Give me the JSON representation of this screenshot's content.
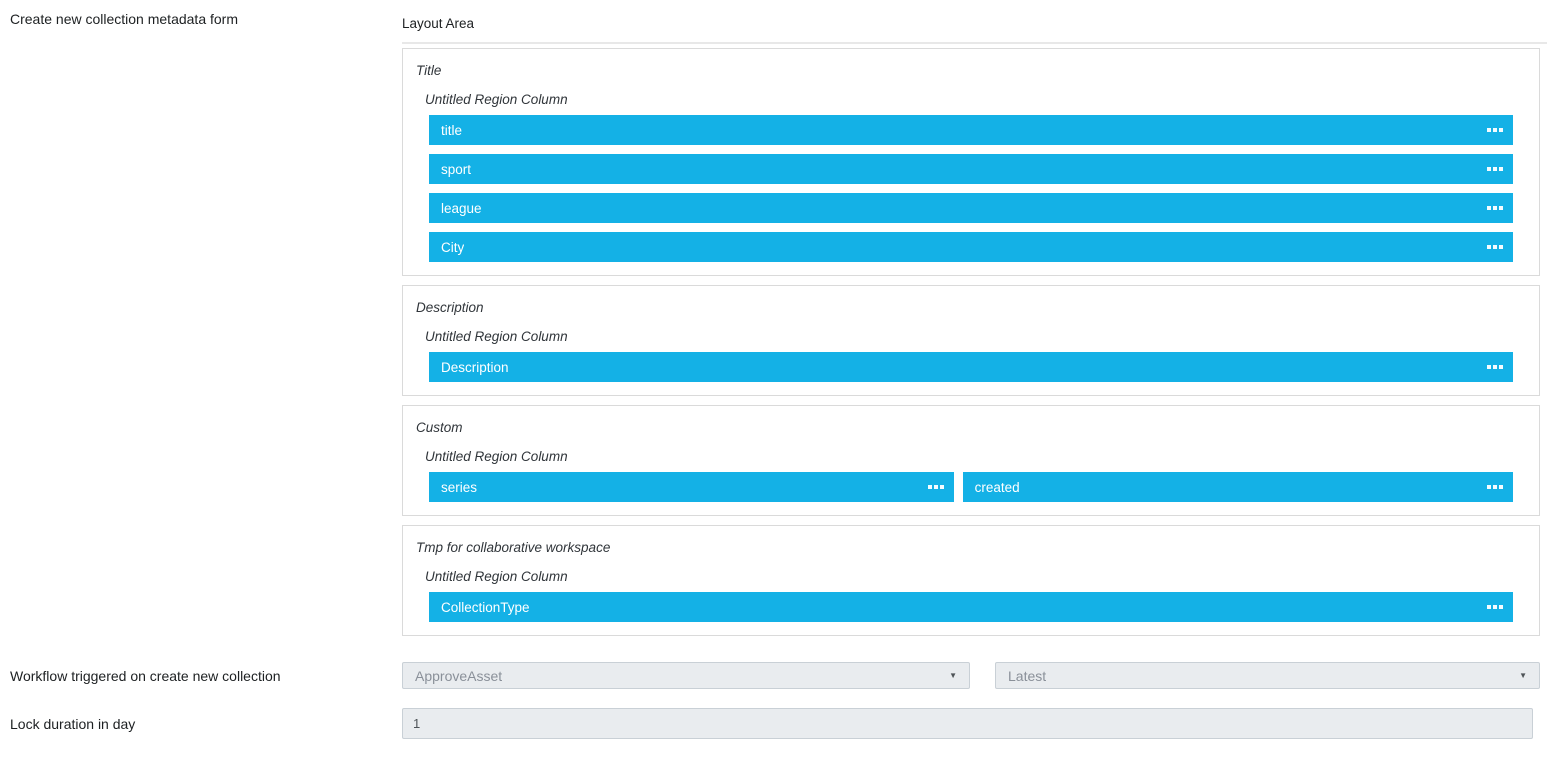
{
  "page": {
    "form_label": "Create new collection metadata form",
    "layout_area_title": "Layout Area"
  },
  "regions": [
    {
      "title": "Title",
      "column_title": "Untitled Region Column",
      "fields": [
        "title",
        "sport",
        "league",
        "City"
      ]
    },
    {
      "title": "Description",
      "column_title": "Untitled Region Column",
      "fields": [
        "Description"
      ]
    },
    {
      "title": "Custom",
      "column_title": "Untitled Region Column",
      "fields": [
        "series",
        "created"
      ]
    },
    {
      "title": "Tmp for collaborative workspace",
      "column_title": "Untitled Region Column",
      "fields": [
        "CollectionType"
      ]
    }
  ],
  "workflow": {
    "label": "Workflow triggered on create new collection",
    "workflow_select_value": "ApproveAsset",
    "version_select_value": "Latest"
  },
  "lock": {
    "label": "Lock duration in day",
    "input_value": "1"
  },
  "icons": {
    "dropdown_arrow": "▼",
    "drag_handle": "▪▪▪"
  },
  "colors": {
    "field_blue": "#14b1e6",
    "control_background": "#e9ecef",
    "box_border": "#dadada"
  }
}
